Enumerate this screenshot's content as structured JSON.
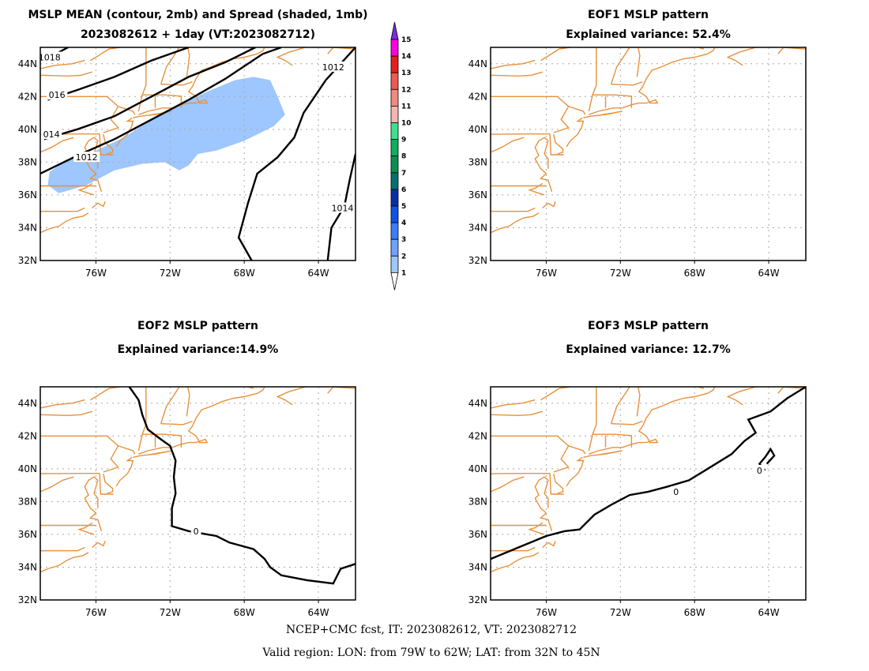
{
  "colors": {
    "coast": "#e8913c",
    "spread": "#9ec6ff",
    "contour": "#000000",
    "grid": "#aaaaaa"
  },
  "domain": {
    "lon_min": -79,
    "lon_max": -62,
    "lat_min": 32,
    "lat_max": 45
  },
  "lon_ticks": [
    {
      "v": -76,
      "label": "76W"
    },
    {
      "v": -72,
      "label": "72W"
    },
    {
      "v": -68,
      "label": "68W"
    },
    {
      "v": -64,
      "label": "64W"
    }
  ],
  "lat_ticks": [
    {
      "v": 32,
      "label": "32N"
    },
    {
      "v": 34,
      "label": "34N"
    },
    {
      "v": 36,
      "label": "36N"
    },
    {
      "v": 38,
      "label": "38N"
    },
    {
      "v": 40,
      "label": "40N"
    },
    {
      "v": 42,
      "label": "42N"
    },
    {
      "v": 44,
      "label": "44N"
    }
  ],
  "panels": [
    {
      "id": "mean",
      "title_lines": [
        "MSLP MEAN (contour, 2mb) and Spread (shaded, 1mb)",
        "2023082612 + 1day (VT:2023082712)"
      ],
      "spread": [
        [
          -78.5,
          37.4
        ],
        [
          -77.5,
          38.2
        ],
        [
          -76,
          38.7
        ],
        [
          -74.5,
          39.5
        ],
        [
          -73,
          40.6
        ],
        [
          -71.5,
          41.5
        ],
        [
          -70,
          42.3
        ],
        [
          -68.5,
          43
        ],
        [
          -67.5,
          43.2
        ],
        [
          -66.6,
          43
        ],
        [
          -66.2,
          42
        ],
        [
          -65.8,
          40.9
        ],
        [
          -66.4,
          40.2
        ],
        [
          -68,
          39.3
        ],
        [
          -69.5,
          38.7
        ],
        [
          -70.5,
          38.5
        ],
        [
          -71,
          37.8
        ],
        [
          -71.5,
          37.5
        ],
        [
          -72.3,
          38
        ],
        [
          -73.5,
          37.9
        ],
        [
          -75,
          37.5
        ],
        [
          -76.5,
          36.6
        ],
        [
          -78,
          36.1
        ],
        [
          -78.6,
          36.6
        ]
      ],
      "contours": [
        {
          "label": "1018",
          "pts": [
            [
              -79,
              44.3
            ],
            [
              -78,
              44.7
            ],
            [
              -77.5,
              45
            ]
          ],
          "lab": [
            -78.5,
            44.4
          ]
        },
        {
          "label": "016",
          "pts": [
            [
              -78.6,
              41.8
            ],
            [
              -77,
              42.4
            ],
            [
              -75,
              43.2
            ],
            [
              -73,
              44.2
            ],
            [
              -71,
              45
            ]
          ],
          "lab": [
            -78.1,
            42.1
          ]
        },
        {
          "label": "014",
          "pts": [
            [
              -78.8,
              39.4
            ],
            [
              -77,
              40
            ],
            [
              -75,
              40.8
            ],
            [
              -73,
              42
            ],
            [
              -71,
              43.2
            ],
            [
              -69,
              44.1
            ],
            [
              -67.4,
              45
            ]
          ],
          "lab": [
            -78.4,
            39.7
          ]
        },
        {
          "label": "1012",
          "pts": [
            [
              -79,
              37.3
            ],
            [
              -77,
              38.4
            ],
            [
              -75,
              39.4
            ],
            [
              -73,
              40.6
            ],
            [
              -71,
              41.8
            ],
            [
              -69,
              43.1
            ],
            [
              -67,
              44.6
            ],
            [
              -66,
              45
            ]
          ],
          "lab": [
            -76.5,
            38.3
          ]
        },
        {
          "label": "1012",
          "pts": [
            [
              -62,
              45
            ],
            [
              -63.6,
              43
            ],
            [
              -64.8,
              41
            ],
            [
              -65.3,
              39.5
            ],
            [
              -66.2,
              38.3
            ],
            [
              -67.3,
              37.3
            ],
            [
              -67.8,
              35.5
            ],
            [
              -68.3,
              33.4
            ],
            [
              -67.6,
              32
            ]
          ],
          "lab": [
            -63.2,
            43.8
          ]
        },
        {
          "label": "1014",
          "pts": [
            [
              -62,
              38.5
            ],
            [
              -62.3,
              37
            ],
            [
              -62.6,
              35.3
            ],
            [
              -63.3,
              34
            ],
            [
              -63.5,
              32
            ]
          ],
          "lab": [
            -62.7,
            35.2
          ]
        }
      ]
    },
    {
      "id": "eof1",
      "title_lines": [
        "EOF1 MSLP pattern",
        "Explained variance: 52.4%"
      ],
      "contours": []
    },
    {
      "id": "eof2",
      "title_lines": [
        "EOF2 MSLP pattern",
        "Explained variance:14.9%"
      ],
      "contours": [
        {
          "label": "0",
          "pts": [
            [
              -74.2,
              45
            ],
            [
              -73.7,
              44.2
            ],
            [
              -73.5,
              43.3
            ],
            [
              -73.2,
              42.4
            ],
            [
              -72.5,
              41.8
            ],
            [
              -72,
              41.4
            ],
            [
              -71.7,
              40.5
            ],
            [
              -71.8,
              39.5
            ],
            [
              -71.7,
              38.5
            ],
            [
              -71.9,
              37.6
            ],
            [
              -71.9,
              36.5
            ],
            [
              -71,
              36.2
            ],
            [
              -69.5,
              35.9
            ],
            [
              -68.8,
              35.5
            ],
            [
              -67.5,
              35.1
            ],
            [
              -66.9,
              34.5
            ],
            [
              -66.6,
              34
            ],
            [
              -66,
              33.5
            ],
            [
              -64.6,
              33.2
            ],
            [
              -63.2,
              33
            ],
            [
              -62.8,
              33.9
            ],
            [
              -62,
              34.2
            ]
          ],
          "lab": [
            -70.6,
            36.2
          ]
        }
      ]
    },
    {
      "id": "eof3",
      "title_lines": [
        "EOF3 MSLP pattern",
        "Explained variance: 12.7%"
      ],
      "contours": [
        {
          "label": "0",
          "pts": [
            [
              -79,
              34.5
            ],
            [
              -77.5,
              35.2
            ],
            [
              -76,
              35.9
            ],
            [
              -75,
              36.2
            ],
            [
              -74.2,
              36.3
            ],
            [
              -73.4,
              37.2
            ],
            [
              -72.5,
              37.8
            ],
            [
              -71.5,
              38.4
            ],
            [
              -70.5,
              38.6
            ],
            [
              -69.5,
              38.9
            ],
            [
              -68.3,
              39.3
            ],
            [
              -67,
              40.2
            ],
            [
              -66,
              40.9
            ],
            [
              -65.3,
              41.7
            ],
            [
              -64.7,
              42.2
            ],
            [
              -65.1,
              43
            ],
            [
              -63.9,
              43.5
            ],
            [
              -63,
              44.3
            ],
            [
              -62,
              45
            ]
          ],
          "lab": [
            -69,
            38.6
          ]
        },
        {
          "label": "",
          "pts": [
            [
              -64.1,
              40.3
            ],
            [
              -63.7,
              40.8
            ],
            [
              -63.9,
              41.2
            ],
            [
              -64.2,
              40.7
            ],
            [
              -64.5,
              40.3
            ],
            [
              -64.2,
              39.9
            ]
          ],
          "lab": null
        },
        {
          "label": "0",
          "pts": [],
          "lab": [
            -64.5,
            39.9
          ]
        }
      ]
    }
  ],
  "coast_lines": [
    [
      [
        -79,
        33.7
      ],
      [
        -78.6,
        33.9
      ],
      [
        -78,
        34.1
      ],
      [
        -77.6,
        34.4
      ],
      [
        -77.2,
        34.6
      ],
      [
        -76.7,
        34.7
      ],
      [
        -76.4,
        34.9
      ]
    ],
    [
      [
        -76.2,
        35.2
      ],
      [
        -75.9,
        35.5
      ],
      [
        -75.6,
        35.3
      ],
      [
        -75.5,
        35.6
      ]
    ],
    [
      [
        -75.7,
        36.2
      ],
      [
        -75.9,
        36.9
      ],
      [
        -76.3,
        37
      ],
      [
        -76,
        37.3
      ],
      [
        -76.3,
        37.6
      ],
      [
        -76.6,
        38.2
      ],
      [
        -76.4,
        38.4
      ],
      [
        -76.6,
        38.9
      ],
      [
        -76.4,
        39.3
      ],
      [
        -76.1,
        39.5
      ],
      [
        -75.9,
        39.3
      ],
      [
        -76.1,
        38.5
      ],
      [
        -75.9,
        38.2
      ],
      [
        -75.9,
        37.6
      ]
    ],
    [
      [
        -76.2,
        36.7
      ],
      [
        -76.6,
        36.4
      ],
      [
        -76.9,
        36.3
      ],
      [
        -76.4,
        36.1
      ],
      [
        -76.1,
        36
      ]
    ],
    [
      [
        -75.4,
        38.5
      ],
      [
        -75.1,
        38.6
      ],
      [
        -75.1,
        38.8
      ],
      [
        -75.5,
        39.2
      ],
      [
        -75.6,
        39.7
      ]
    ],
    [
      [
        -74.9,
        38.95
      ],
      [
        -74.7,
        39.3
      ],
      [
        -74.3,
        39.7
      ],
      [
        -74.1,
        40.1
      ],
      [
        -74,
        40.5
      ],
      [
        -74.3,
        40.5
      ],
      [
        -74.05,
        40.7
      ]
    ],
    [
      [
        -74,
        40.7
      ],
      [
        -73.6,
        40.8
      ],
      [
        -72.8,
        40.9
      ],
      [
        -71.9,
        41.1
      ],
      [
        -72.4,
        41.0
      ],
      [
        -73.2,
        40.85
      ]
    ],
    [
      [
        -73.7,
        40.9
      ],
      [
        -73.2,
        41.1
      ],
      [
        -72.4,
        41.3
      ],
      [
        -71.9,
        41.3
      ],
      [
        -71.4,
        41.5
      ],
      [
        -71,
        41.6
      ],
      [
        -70.6,
        41.6
      ],
      [
        -70.1,
        41.8
      ],
      [
        -70,
        41.6
      ],
      [
        -70.4,
        41.6
      ],
      [
        -70.6,
        42
      ],
      [
        -71,
        42.3
      ],
      [
        -70.8,
        42.6
      ],
      [
        -70.6,
        43.1
      ],
      [
        -70.3,
        43.6
      ],
      [
        -69.8,
        43.8
      ],
      [
        -69.2,
        44.1
      ],
      [
        -68.6,
        44.3
      ],
      [
        -68,
        44.4
      ],
      [
        -67.3,
        44.6
      ],
      [
        -67,
        44.8
      ],
      [
        -66.9,
        45
      ]
    ],
    [
      [
        -64.7,
        45
      ],
      [
        -65.6,
        44.7
      ],
      [
        -66.2,
        44.4
      ],
      [
        -65.8,
        44.2
      ],
      [
        -65.4,
        43.9
      ]
    ],
    [
      [
        -63.5,
        44.6
      ],
      [
        -63.2,
        45
      ],
      [
        -62,
        44.9
      ]
    ],
    [
      [
        -79,
        35
      ],
      [
        -77,
        35
      ],
      [
        -76.6,
        35.2
      ]
    ],
    [
      [
        -79,
        36.55
      ],
      [
        -76,
        36.55
      ]
    ],
    [
      [
        -79,
        38.6
      ],
      [
        -78.4,
        38.9
      ],
      [
        -77.8,
        39.3
      ],
      [
        -77.2,
        39.5
      ]
    ],
    [
      [
        -79,
        39.7
      ],
      [
        -77,
        39.72
      ],
      [
        -75.8,
        39.72
      ]
    ],
    [
      [
        -75.8,
        39.72
      ],
      [
        -75.75,
        38.45
      ],
      [
        -75.05,
        38.45
      ]
    ],
    [
      [
        -75.6,
        39.8
      ],
      [
        -74.8,
        40.1
      ],
      [
        -75.2,
        40.6
      ],
      [
        -74.8,
        41.4
      ]
    ],
    [
      [
        -79,
        42
      ],
      [
        -75.4,
        42
      ],
      [
        -75.2,
        41.8
      ],
      [
        -74.8,
        41.4
      ],
      [
        -74,
        41.1
      ],
      [
        -73.9,
        40.9
      ]
    ],
    [
      [
        -73.7,
        41.1
      ],
      [
        -73.5,
        42.1
      ],
      [
        -73.3,
        42.7
      ],
      [
        -73.3,
        45
      ]
    ],
    [
      [
        -73.5,
        42.1
      ],
      [
        -72.3,
        42.1
      ],
      [
        -71.4,
        42.02
      ],
      [
        -71.4,
        41.3
      ]
    ],
    [
      [
        -72.8,
        42.05
      ],
      [
        -72.8,
        41.3
      ]
    ],
    [
      [
        -72.5,
        42.75
      ],
      [
        -71.3,
        42.7
      ],
      [
        -70.8,
        42.9
      ]
    ],
    [
      [
        -72.5,
        42.75
      ],
      [
        -72.2,
        43.8
      ],
      [
        -71.9,
        44.3
      ],
      [
        -71.5,
        45
      ]
    ],
    [
      [
        -71.1,
        43.2
      ],
      [
        -70.95,
        44.5
      ],
      [
        -71.05,
        45
      ]
    ],
    [
      [
        -67.8,
        45
      ],
      [
        -67.5,
        44.9
      ]
    ],
    [
      [
        -79,
        43.3
      ],
      [
        -77.5,
        43.25
      ],
      [
        -76.8,
        43.3
      ],
      [
        -76.2,
        43.5
      ]
    ],
    [
      [
        -76.3,
        44.2
      ],
      [
        -76,
        44.4
      ],
      [
        -75.3,
        44.9
      ],
      [
        -74.7,
        45
      ]
    ],
    [
      [
        -79,
        43.7
      ],
      [
        -78.2,
        43.9
      ],
      [
        -77.3,
        44
      ],
      [
        -76.6,
        44.2
      ]
    ]
  ],
  "colorbar": {
    "levels": [
      "1",
      "2",
      "3",
      "4",
      "5",
      "6",
      "7",
      "8",
      "9",
      "10",
      "11",
      "12",
      "13",
      "14",
      "15"
    ],
    "colors": [
      "#ffffff",
      "#9ec6ff",
      "#6ea2ff",
      "#3d7bff",
      "#0f53e6",
      "#0a2ea8",
      "#05706e",
      "#0a8f50",
      "#0fad5c",
      "#3ee08c",
      "#f5b5b0",
      "#f08a80",
      "#ec5a52",
      "#e81d1d",
      "#ff00e0",
      "#7a2be6"
    ]
  },
  "footer": {
    "line1": "NCEP+CMC fcst, IT: 2023082612, VT: 2023082712",
    "line2": "Valid region: LON: from 79W to 62W; LAT: from 32N to 45N"
  }
}
